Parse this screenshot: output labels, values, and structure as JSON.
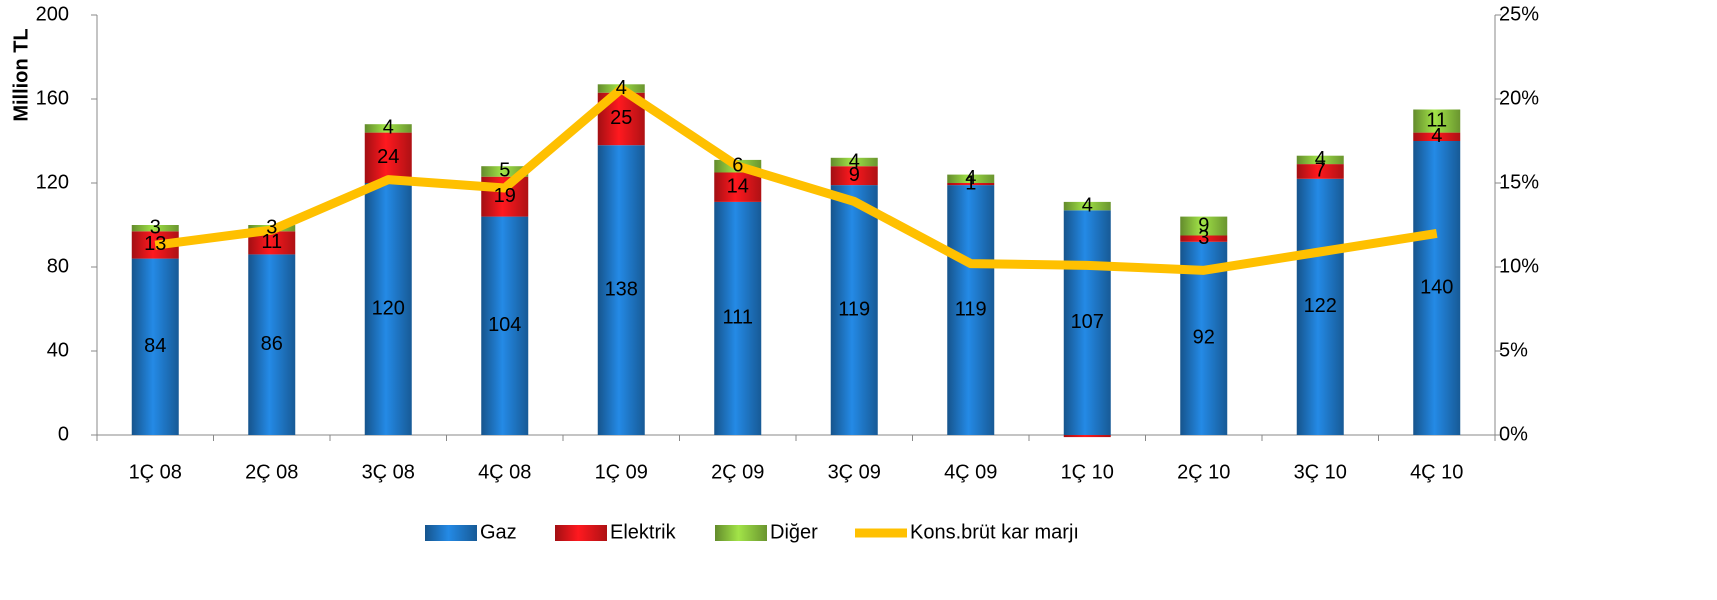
{
  "chart_data": {
    "type": "bar",
    "stacked": true,
    "y_label": "Million TL",
    "categories": [
      "1Ç 08",
      "2Ç 08",
      "3Ç 08",
      "4Ç 08",
      "1Ç 09",
      "2Ç 09",
      "3Ç 09",
      "4Ç 09",
      "1Ç 10",
      "2Ç 10",
      "3Ç 10",
      "4Ç 10"
    ],
    "series": [
      {
        "name": "Gaz",
        "color": "#1f78c8",
        "values": [
          84,
          86,
          120,
          104,
          138,
          111,
          119,
          119,
          107,
          92,
          122,
          140
        ]
      },
      {
        "name": "Elektrik",
        "color": "#e8161b",
        "values": [
          13,
          11,
          24,
          19,
          25,
          14,
          9,
          1,
          -1,
          3,
          7,
          4
        ],
        "value_labels": [
          "13",
          "11",
          "24",
          "19",
          "25",
          "14",
          "9",
          "1",
          null,
          "3",
          "7",
          "4"
        ]
      },
      {
        "name": "Diğer",
        "color": "#8dc63f",
        "values": [
          3,
          3,
          4,
          5,
          4,
          6,
          4,
          4,
          4,
          9,
          4,
          11
        ]
      },
      {
        "name": "Kons.brüt kar marjı",
        "color": "#ffc000",
        "type": "line",
        "axis": "y2",
        "values": [
          11.3,
          12.2,
          15.2,
          14.7,
          20.6,
          16.0,
          13.9,
          10.2,
          10.1,
          9.8,
          10.9,
          12.0
        ]
      }
    ],
    "ylim": [
      0,
      200
    ],
    "yticks": [
      0,
      40,
      80,
      120,
      160,
      200
    ],
    "y2lim": [
      0,
      25
    ],
    "y2ticks": [
      {
        "value": 0,
        "label": "0%"
      },
      {
        "value": 5,
        "label": "5%"
      },
      {
        "value": 10,
        "label": "10%"
      },
      {
        "value": 15,
        "label": "15%"
      },
      {
        "value": 20,
        "label": "20%"
      },
      {
        "value": 25,
        "label": "25%"
      }
    ],
    "legend": "bottom"
  }
}
